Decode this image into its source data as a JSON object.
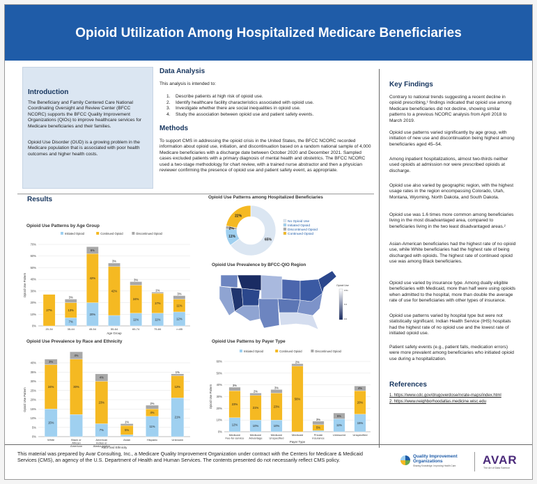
{
  "title": "Opioid Utilization Among Hospitalized Medicare Beneficiaries",
  "intro": {
    "heading": "Introduction",
    "p1": "The Beneficiary and Family Centered Care National Coordinating Oversight and Review Center (BFCC NCORC) supports the BFCC Quality Improvement Organizations (QIOs) to improve healthcare services for Medicare beneficiaries and their families.",
    "p2": "Opioid Use Disorder (OUD) is a growing problem in the Medicare population that is associated with poor health outcomes and higher health costs."
  },
  "analysis": {
    "heading": "Data Analysis",
    "lead": "This analysis is intended to:",
    "aims": [
      {
        "n": "1.",
        "text": "Describe patients at high risk of opioid use."
      },
      {
        "n": "2.",
        "text": "Identify healthcare facility characteristics associated with opioid use."
      },
      {
        "n": "3.",
        "text": "Investigate whether there are social inequalities in opioid use."
      },
      {
        "n": "4.",
        "text": "Study the association between opioid use and patient safety events."
      }
    ]
  },
  "methods": {
    "heading": "Methods",
    "text": "To support CMS in addressing the opioid crisis in the United States, the BFCC NCORC recorded information about opioid use, initiation, and discontinuation based on a random national sample of 4,000 Medicare beneficiaries with a discharge date between October 2020 and December 2021. Sampled cases excluded patients with a primary diagnosis of mental health and obstetrics. The BFCC NCORC used a two-stage methodology for chart review, with a trained nurse abstractor and then a physician reviewer confirming the presence of opioid use and patient safety event, as appropriate."
  },
  "results_heading": "Results",
  "key": {
    "heading": "Key Findings",
    "paras": [
      "Contrary to national trends suggesting a recent decline in opioid prescribing,¹ findings indicated that opioid use among Medicare beneficiaries did not decline, showing similar patterns to a previous NCORC analysis from April 2018 to March 2019.",
      "Opioid use patterns varied significantly by age group, with initiation of new use and discontinuation being highest among beneficiaries aged 45–54.",
      "Among inpatient hospitalizations, almost two-thirds neither used opioids at admission nor were prescribed opioids at discharge.",
      "Opioid use also varied by geographic region, with the highest usage rates in the region encompassing Colorado, Utah, Montana, Wyoming, North Dakota, and South Dakota.",
      "Opioid use was 1.6 times more common among beneficiaries living in the most disadvantaged area, compared to beneficiaries living in the two least disadvantaged areas.²",
      "Asian-American beneficiaries had the highest rate of no opioid use, while White beneficiaries had the highest rate of being discharged with opioids. The highest rate of continued opioid use was among Black beneficiaries.",
      "Opioid use varied by insurance type. Among dually eligible beneficiaries with Medicaid, more than half were using opioids when admitted to the hospital, more than double the average rate of use for beneficiaries with other types of insurance.",
      "Opioid use patterns varied by hospital type but were not statistically significant. Indian Health Service (IHS) hospitals had the highest rate of no opioid use and the lowest rate of initiated opioid use.",
      "Patient safety events (e.g., patient falls, medication errors) were more prevalent among beneficiaries who initiated opioid use during a hospitalization."
    ]
  },
  "references": {
    "heading": "References",
    "items": [
      "1. https://www.cdc.gov/drugoverdose/rxrate-maps/index.html",
      "2. https://www.neighborhoodatlas.medicine.wisc.edu"
    ]
  },
  "footer": "This material was prepared by Avar Consulting, Inc., a Medicare Quality Improvement Organization under contract with the Centers for Medicare & Medicaid Services (CMS), an agency of the U.S. Department of Health and Human Services. The contents presented do not necessarily reflect CMS policy.",
  "logos": {
    "qio_line1": "Quality Improvement",
    "qio_line2": "Organizations",
    "qio_tag": "Sharing Knowledge. Improving Health Care.",
    "avar": "AVAR",
    "avar_tag": "The Art of Data Science"
  },
  "colors": {
    "initiated": "#9fd0f0",
    "continued": "#f5b922",
    "discontinued": "#a8a8a8",
    "no_opioid": "#dbe6f2",
    "accent": "#1f5ca8"
  },
  "chart_data": [
    {
      "type": "bar",
      "title": "Opioid Use Patterns by Age Group",
      "xlabel": "Age Group",
      "ylabel": "Opioid Use Pattern",
      "ylim": [
        0,
        70
      ],
      "yticks": [
        "0%",
        "10%",
        "20%",
        "30%",
        "40%",
        "50%",
        "60%",
        "70%"
      ],
      "legend": [
        "Initiated Opioid",
        "Continued Opioid",
        "Discontinued Opioid"
      ],
      "categories": [
        "20-34",
        "35-44",
        "45-54",
        "55-64",
        "65-74",
        "75-84",
        ">=85"
      ],
      "series": [
        {
          "name": "Initiated Opioid",
          "values": [
            0,
            7,
            20,
            9,
            11,
            11,
            12
          ],
          "labels": [
            "",
            "7%",
            "20%",
            "",
            "11%",
            "11%",
            "12%"
          ]
        },
        {
          "name": "Continued Opioid",
          "values": [
            27,
            13,
            42,
            42,
            24,
            17,
            11
          ],
          "labels": [
            "27%",
            "13%",
            "42%",
            "42%",
            "24%",
            "17%",
            "11%"
          ]
        },
        {
          "name": "Discontinued Opioid",
          "values": [
            0,
            3,
            6,
            3,
            3,
            1,
            3
          ],
          "labels": [
            "",
            "3%",
            "6%",
            "3%",
            "3%",
            "1%",
            "3%"
          ]
        }
      ]
    },
    {
      "type": "pie",
      "title": "Opioid Use Patterns among Hospitalized Beneficiaries",
      "legend": [
        "No Opioid Use",
        "Initiated Opioid",
        "Discontinued Opioid",
        "Continued Opioid"
      ],
      "values": [
        65,
        11,
        2,
        22
      ],
      "labels": [
        "65%",
        "11%",
        "2%",
        "22%"
      ]
    },
    {
      "type": "heatmap",
      "title": "Opioid Use Prevalence by BFCC-QIO Region",
      "legend_title": "Opioid Use",
      "scale_labels": [
        "0.51",
        "0.2",
        "0.0"
      ]
    },
    {
      "type": "bar",
      "title": "Opioid Use Prevalence by Race and Ethnicity",
      "xlabel": "Race and Ethnicity",
      "ylabel": "Opioid Use Pattern",
      "ylim": [
        0,
        40
      ],
      "yticks": [
        "0%",
        "5%",
        "10%",
        "15%",
        "20%",
        "25%",
        "30%",
        "35%",
        "40%"
      ],
      "categories": [
        "White",
        "Black or African American",
        "American Indian or Alaska Native",
        "Asian",
        "Hispanic",
        "Unknown"
      ],
      "series": [
        {
          "name": "Initiated Opioid",
          "values": [
            15,
            12,
            7,
            1,
            11,
            21
          ],
          "labels": [
            "15%",
            "",
            "7%",
            "1%",
            "11%",
            "21%"
          ]
        },
        {
          "name": "Continued Opioid",
          "values": [
            24,
            30,
            23,
            5,
            4,
            12
          ],
          "labels": [
            "24%",
            "30%",
            "23%",
            "5%",
            "4%",
            "12%"
          ]
        },
        {
          "name": "Discontinued Opioid",
          "values": [
            3,
            4,
            4,
            1,
            2,
            1
          ],
          "labels": [
            "3%",
            "4%",
            "4%",
            "1%",
            "2%",
            "1%"
          ]
        }
      ]
    },
    {
      "type": "bar",
      "title": "Opioid Use Patterns by Payer Type",
      "xlabel": "Payer Type",
      "ylabel": "Opioid Use Pattern",
      "ylim": [
        0,
        60
      ],
      "yticks": [
        "0%",
        "10%",
        "20%",
        "30%",
        "40%",
        "50%",
        "60%"
      ],
      "legend": [
        "Initiated Opioid",
        "Continued Opioid",
        "Discontinued Opioid"
      ],
      "categories": [
        "Medicare Fee-for-service",
        "Medicare Advantage",
        "Medicare Unspecified",
        "Medicaid",
        "Private insurance",
        "Uninsured",
        "Unspecified"
      ],
      "series": [
        {
          "name": "Initiated Opioid",
          "values": [
            12,
            10,
            10,
            0,
            1,
            11,
            15
          ],
          "labels": [
            "12%",
            "10%",
            "10%",
            "",
            "",
            "11%",
            "15%"
          ]
        },
        {
          "name": "Continued Opioid",
          "values": [
            23,
            21,
            23,
            56,
            5,
            0,
            20
          ],
          "labels": [
            "23%",
            "21%",
            "23%",
            "56%",
            "5%",
            "",
            "20%"
          ]
        },
        {
          "name": "Discontinued Opioid",
          "values": [
            3,
            2,
            3,
            2,
            3,
            5,
            4
          ],
          "labels": [
            "3%",
            "2%",
            "3%",
            "2%",
            "3%",
            "5%",
            "4%"
          ]
        }
      ]
    }
  ]
}
